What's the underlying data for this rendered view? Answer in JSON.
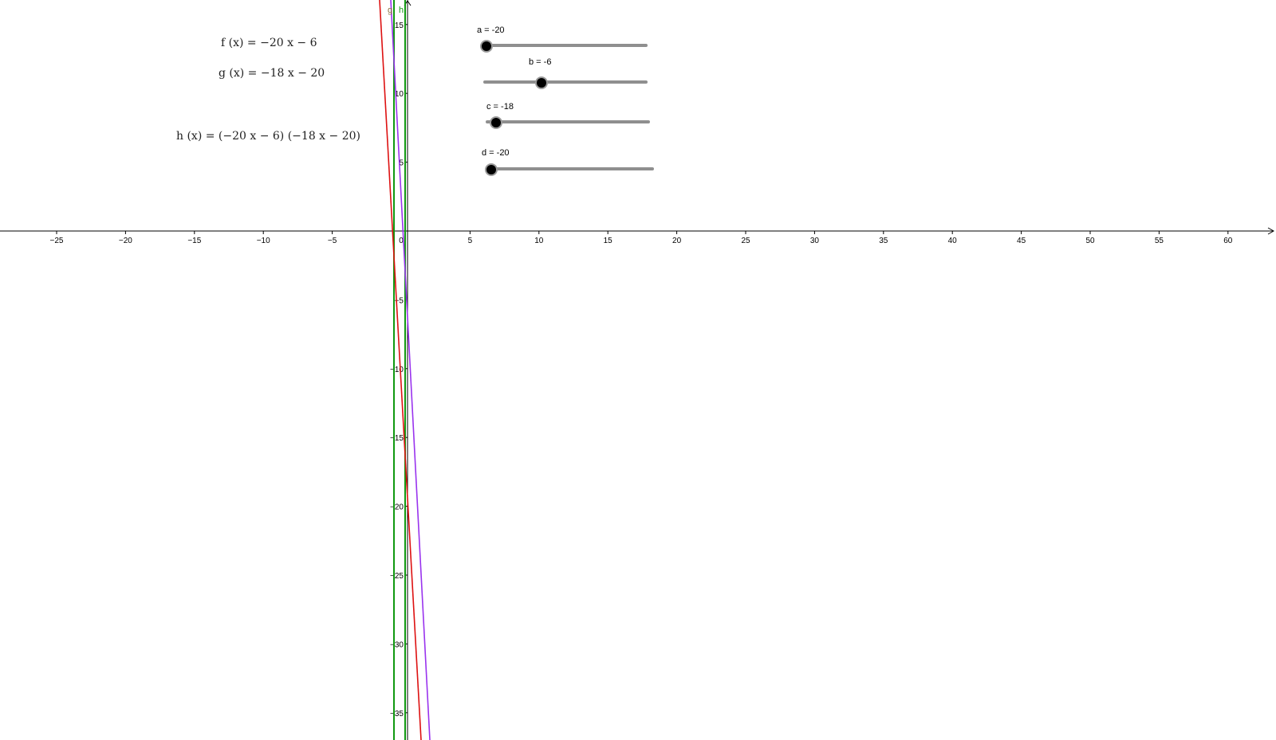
{
  "algebra": {
    "f": "f (x)  =  −20 x − 6",
    "g": "g (x)  =  −18 x − 20",
    "h": "h (x)  =  (−20 x − 6)  (−18 x − 20)"
  },
  "sliders": [
    {
      "label": "a = -20",
      "value": -20,
      "min": -20,
      "max": 20
    },
    {
      "label": "b = -6",
      "value": -6,
      "min": -20,
      "max": 20
    },
    {
      "label": "c = -18",
      "value": -18,
      "min": -20,
      "max": 20
    },
    {
      "label": "d = -20",
      "value": -20,
      "min": -20,
      "max": 20
    }
  ],
  "axes": {
    "x_ticks": [
      "−25",
      "−20",
      "−15",
      "−10",
      "−5",
      "0",
      "5",
      "10",
      "15",
      "20",
      "25",
      "30",
      "35",
      "40",
      "45",
      "50",
      "55",
      "60"
    ],
    "y_ticks": [
      "15",
      "10",
      "5",
      "−5",
      "−10",
      "−15",
      "−20",
      "−25",
      "−30",
      "−35"
    ],
    "curve_labels": [
      "g",
      "h"
    ]
  },
  "colors": {
    "f": "#dd1111",
    "g": "#9933ee",
    "h": "#119911",
    "axis": "#000000"
  }
}
